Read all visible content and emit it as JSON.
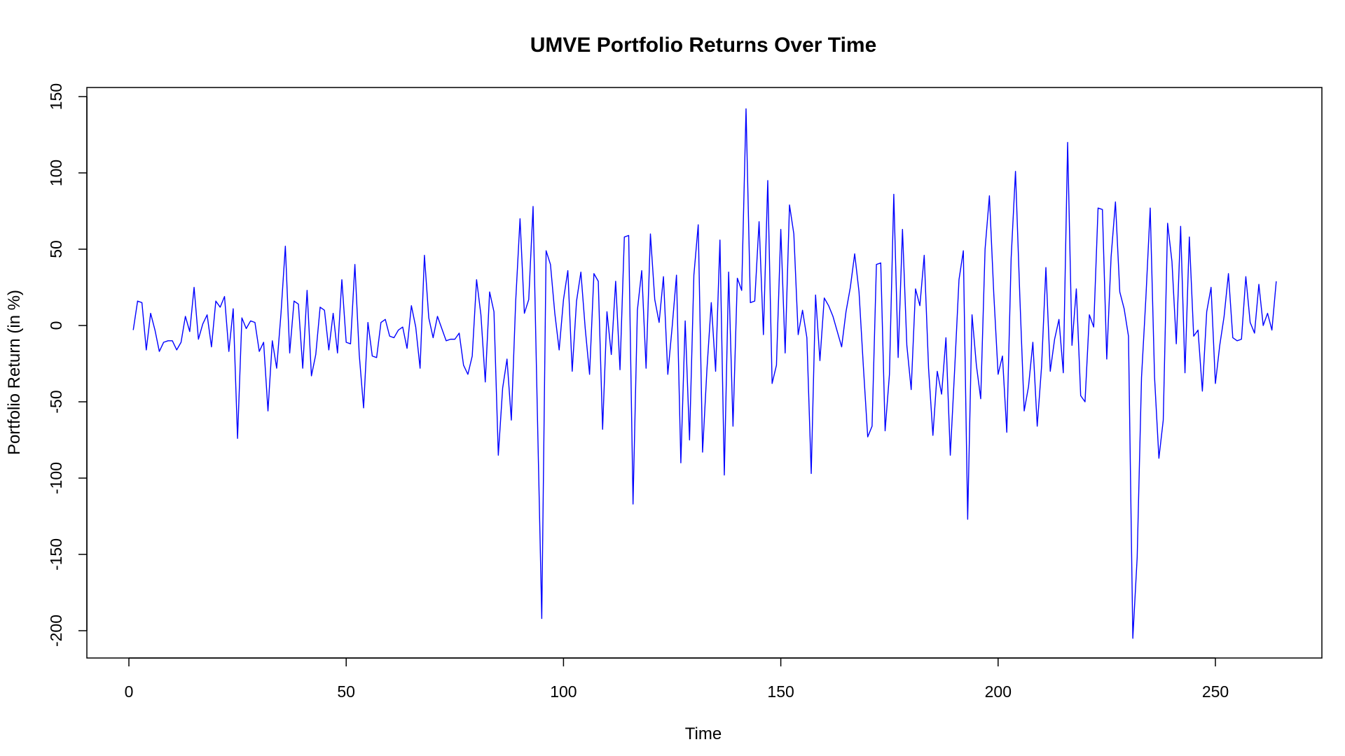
{
  "chart_data": {
    "type": "line",
    "title": "UMVE Portfolio Returns Over Time",
    "xlabel": "Time",
    "ylabel": "Portfolio Return (in %)",
    "xlim": [
      1,
      264
    ],
    "ylim": [
      -205,
      150
    ],
    "x_ticks": [
      0,
      50,
      100,
      150,
      200,
      250
    ],
    "y_ticks": [
      -200,
      -150,
      -100,
      -50,
      0,
      50,
      100,
      150
    ],
    "x_tick_labels": [
      "0",
      "50",
      "100",
      "150",
      "200",
      "250"
    ],
    "y_tick_labels": [
      "-200",
      "-150",
      "-100",
      "-50",
      "0",
      "50",
      "100",
      "150"
    ],
    "grid": false,
    "line_color": "#0000ff",
    "series": [
      {
        "x_start": 1,
        "values": [
          -3,
          16,
          15,
          -16,
          8,
          -3,
          -17,
          -11,
          -10,
          -10,
          -16,
          -11,
          6,
          -4,
          25,
          -9,
          1,
          7,
          -14,
          16,
          12,
          19,
          -17,
          11,
          -74,
          5,
          -2,
          3,
          2,
          -17,
          -11,
          -56,
          -10,
          -28,
          8,
          52,
          -18,
          16,
          14,
          -28,
          23,
          -33,
          -19,
          12,
          10,
          -16,
          8,
          -18,
          30,
          -11,
          -12,
          40,
          -19,
          -54,
          2,
          -20,
          -21,
          2,
          4,
          -7,
          -8,
          -3,
          -1,
          -15,
          13,
          -1,
          -28,
          46,
          5,
          -8,
          6,
          -2,
          -10,
          -9,
          -9,
          -5,
          -26,
          -32,
          -20,
          30,
          7,
          -37,
          22,
          9,
          -85,
          -41,
          -22,
          -62,
          16,
          70,
          8,
          17,
          78,
          -59,
          -192,
          49,
          40,
          8,
          -16,
          17,
          36,
          -30,
          16,
          35,
          -2,
          -32,
          34,
          29,
          -68,
          9,
          -19,
          29,
          -29,
          58,
          59,
          -117,
          10,
          36,
          -28,
          60,
          17,
          2,
          32,
          -32,
          -1,
          33,
          -90,
          3,
          -75,
          33,
          66,
          -83,
          -29,
          15,
          -30,
          56,
          -98,
          35,
          -66,
          31,
          23,
          142,
          15,
          16,
          68,
          -6,
          95,
          -38,
          -26,
          63,
          -18,
          79,
          60,
          -6,
          10,
          -8,
          -97,
          20,
          -23,
          18,
          13,
          6,
          -4,
          -14,
          9,
          25,
          47,
          22,
          -27,
          -73,
          -66,
          40,
          41,
          -69,
          -32,
          86,
          -21,
          63,
          -13,
          -42,
          24,
          13,
          46,
          -28,
          -72,
          -30,
          -45,
          -8,
          -85,
          -29,
          30,
          49,
          -127,
          7,
          -26,
          -48,
          50,
          85,
          21,
          -32,
          -20,
          -70,
          44,
          101,
          19,
          -56,
          -40,
          -11,
          -66,
          -27,
          38,
          -30,
          -9,
          4,
          -31,
          120,
          -13,
          24,
          -46,
          -50,
          7,
          -1,
          77,
          76,
          -22,
          45,
          81,
          22,
          11,
          -7,
          -205,
          -152,
          -34,
          18,
          77,
          -34,
          -87,
          -62,
          67,
          42,
          -12,
          65,
          -31,
          58,
          -7,
          -3,
          -43,
          9,
          25,
          -38,
          -13,
          6,
          34,
          -8,
          -10,
          -9,
          32,
          2,
          -5,
          27,
          0,
          8,
          -3,
          29
        ]
      }
    ]
  }
}
